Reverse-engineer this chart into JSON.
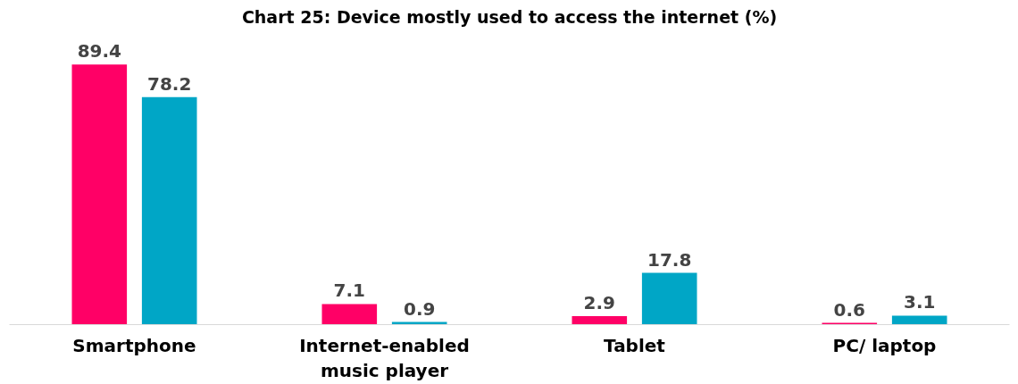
{
  "chart_data": {
    "type": "bar",
    "title": "Chart 25: Device mostly used to access the internet (%)",
    "categories": [
      "Smartphone",
      "Internet-enabled\nmusic player",
      "Tablet",
      "PC/ laptop"
    ],
    "series": [
      {
        "color": "#ff0066",
        "values": [
          89.4,
          7.1,
          2.9,
          0.6
        ]
      },
      {
        "color": "#00a6c6",
        "values": [
          78.2,
          0.9,
          17.8,
          3.1
        ]
      }
    ],
    "data_labels": true,
    "grid": false
  }
}
